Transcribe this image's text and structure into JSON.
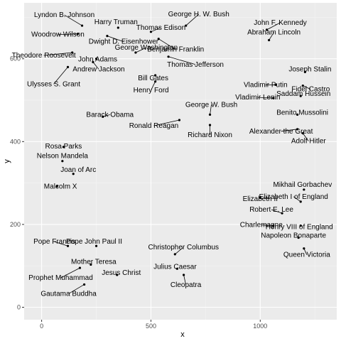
{
  "chart_data": {
    "type": "scatter",
    "xlabel": "x",
    "ylabel": "y",
    "xlim": [
      -80,
      1350
    ],
    "ylim": [
      -30,
      735
    ],
    "xticks": [
      0,
      500,
      1000
    ],
    "yticks": [
      0,
      200,
      400,
      600
    ],
    "grid": true,
    "points": [
      {
        "label": "Lyndon B. Johnson",
        "x": 185,
        "y": 680
      },
      {
        "label": "Harry Truman",
        "x": 350,
        "y": 675
      },
      {
        "label": "Thomas Edison",
        "x": 500,
        "y": 665
      },
      {
        "label": "George H. W. Bush",
        "x": 660,
        "y": 680
      },
      {
        "label": "John F. Kennedy",
        "x": 1030,
        "y": 670
      },
      {
        "label": "Abraham Lincoln",
        "x": 1040,
        "y": 645
      },
      {
        "label": "Woodrow Wilson",
        "x": 165,
        "y": 660
      },
      {
        "label": "Dwight D. Eisenhower",
        "x": 300,
        "y": 655
      },
      {
        "label": "Benjamin Franklin",
        "x": 535,
        "y": 648
      },
      {
        "label": "Theodore Roosevelt",
        "x": 140,
        "y": 615
      },
      {
        "label": "John Adams",
        "x": 250,
        "y": 600
      },
      {
        "label": "George Washington",
        "x": 430,
        "y": 615
      },
      {
        "label": "Thomas Jefferson",
        "x": 580,
        "y": 605
      },
      {
        "label": "Andrew Jackson",
        "x": 235,
        "y": 592
      },
      {
        "label": "Ulysses S. Grant",
        "x": 120,
        "y": 580
      },
      {
        "label": "Bill Gates",
        "x": 520,
        "y": 560
      },
      {
        "label": "Henry Ford",
        "x": 520,
        "y": 545
      },
      {
        "label": "Joseph Stalin",
        "x": 1205,
        "y": 568
      },
      {
        "label": "Vladimir Putin",
        "x": 1070,
        "y": 537
      },
      {
        "label": "Fidel Castro",
        "x": 1195,
        "y": 535
      },
      {
        "label": "Vladimir Lenin",
        "x": 1060,
        "y": 505
      },
      {
        "label": "Saddam Hussein",
        "x": 1185,
        "y": 510
      },
      {
        "label": "Barack Obama",
        "x": 280,
        "y": 460
      },
      {
        "label": "George W. Bush",
        "x": 770,
        "y": 465
      },
      {
        "label": "Benito Mussolini",
        "x": 1170,
        "y": 465
      },
      {
        "label": "Ronald Reagan",
        "x": 630,
        "y": 452
      },
      {
        "label": "Richard Nixon",
        "x": 770,
        "y": 440
      },
      {
        "label": "Alexander the Great",
        "x": 1170,
        "y": 430
      },
      {
        "label": "Adolf Hitler",
        "x": 1195,
        "y": 420
      },
      {
        "label": "Rosa Parks",
        "x": 100,
        "y": 387
      },
      {
        "label": "Nelson Mandela",
        "x": 95,
        "y": 353
      },
      {
        "label": "Joan of Arc",
        "x": 145,
        "y": 322
      },
      {
        "label": "Malcolm X",
        "x": 70,
        "y": 292
      },
      {
        "label": "Mikhail Gorbachev",
        "x": 1200,
        "y": 284
      },
      {
        "label": "Elizabeth II",
        "x": 1000,
        "y": 265
      },
      {
        "label": "Elizabeth I of England",
        "x": 1185,
        "y": 255
      },
      {
        "label": "Robert E. Lee",
        "x": 1100,
        "y": 227
      },
      {
        "label": "Charlemagne",
        "x": 1060,
        "y": 197
      },
      {
        "label": "Henry VIII of England",
        "x": 1185,
        "y": 197
      },
      {
        "label": "Napoleon Bonaparte",
        "x": 1175,
        "y": 168
      },
      {
        "label": "Queen Victoria",
        "x": 1200,
        "y": 142
      },
      {
        "label": "Pope Francis",
        "x": 120,
        "y": 148
      },
      {
        "label": "Pope John Paul II",
        "x": 250,
        "y": 148
      },
      {
        "label": "Christopher Columbus",
        "x": 610,
        "y": 128
      },
      {
        "label": "Mother Teresa",
        "x": 225,
        "y": 103
      },
      {
        "label": "Julius Caesar",
        "x": 620,
        "y": 93
      },
      {
        "label": "Prophet Muhammad",
        "x": 175,
        "y": 95
      },
      {
        "label": "Jesus Christ",
        "x": 345,
        "y": 78
      },
      {
        "label": "Cleopatra",
        "x": 650,
        "y": 78
      },
      {
        "label": "Gautama Buddha",
        "x": 195,
        "y": 55
      }
    ]
  }
}
